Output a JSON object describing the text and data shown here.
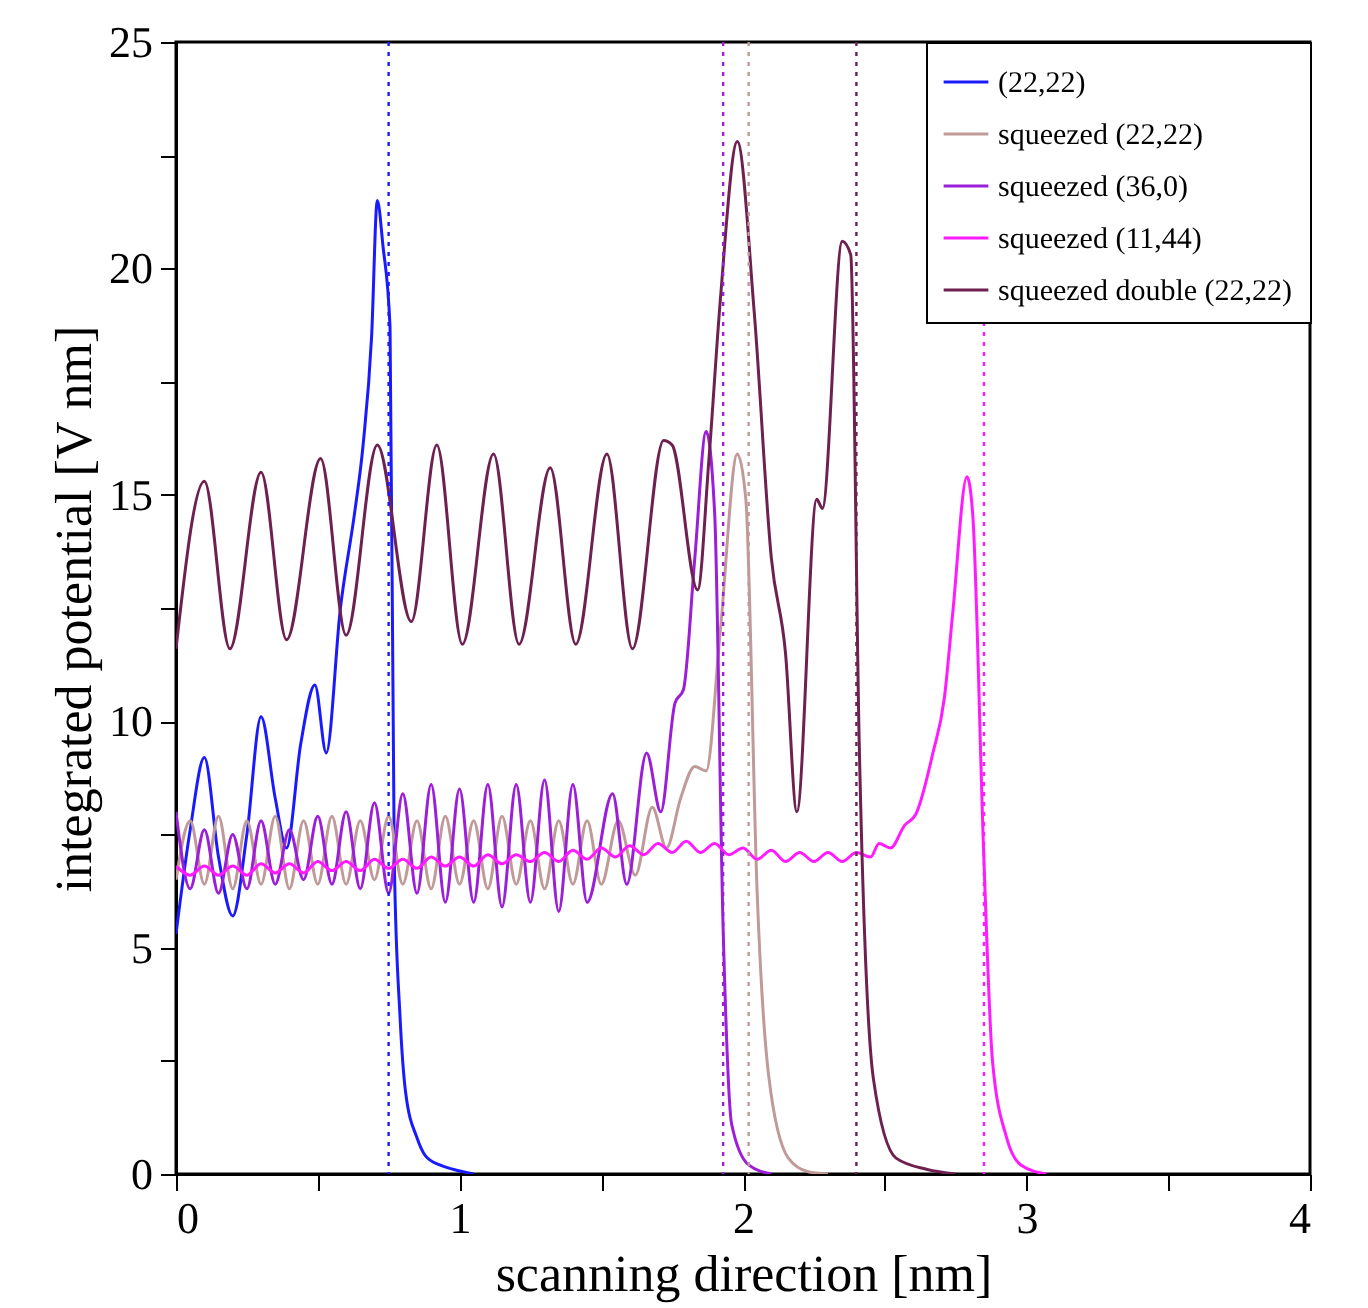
{
  "chart_data": {
    "type": "line",
    "xlabel": "scanning direction [nm]",
    "ylabel": "integrated potential [V nm]",
    "xlim": [
      0,
      4
    ],
    "ylim": [
      0,
      25
    ],
    "xticks": [
      0,
      {
        "value": 0.5,
        "label": null
      },
      1,
      {
        "value": 1.5,
        "label": null
      },
      2,
      {
        "value": 2.5,
        "label": null
      },
      3,
      {
        "value": 3.5,
        "label": null
      },
      4
    ],
    "yticks": [
      0,
      {
        "value": 2.5,
        "label": null
      },
      5,
      {
        "value": 7.5,
        "label": null
      },
      10,
      {
        "value": 12.5,
        "label": null
      },
      15,
      {
        "value": 17.5,
        "label": null
      },
      20,
      {
        "value": 22.5,
        "label": null
      },
      25
    ],
    "grid": false,
    "legend": "top right",
    "line_style": "solid",
    "marker": "none",
    "series": [
      {
        "name": "(22,22)",
        "color": "#1a1aff",
        "x": [
          0,
          0.05,
          0.1,
          0.15,
          0.2,
          0.25,
          0.3,
          0.35,
          0.39,
          0.44,
          0.49,
          0.53,
          0.58,
          0.63,
          0.66,
          0.69,
          0.71,
          0.73,
          0.755,
          0.77,
          0.79,
          0.81,
          0.85,
          0.88,
          0.93,
          0.98,
          1.05
        ],
        "values": [
          5.3,
          7.6,
          9.2,
          7.0,
          5.7,
          7.5,
          10.1,
          8.3,
          7.2,
          9.5,
          10.8,
          9.3,
          12.5,
          14.6,
          16.1,
          18.5,
          21.5,
          20.5,
          18.7,
          6.9,
          3.5,
          1.8,
          0.8,
          0.4,
          0.2,
          0.1,
          0
        ]
      },
      {
        "name": "squeezed (22,22)",
        "color": "#c09a98",
        "x": [
          0,
          0.05,
          0.1,
          0.15,
          0.2,
          0.25,
          0.3,
          0.35,
          0.4,
          0.45,
          0.5,
          0.55,
          0.6,
          0.65,
          0.7,
          0.75,
          0.8,
          0.85,
          0.9,
          0.95,
          1.0,
          1.05,
          1.1,
          1.15,
          1.2,
          1.25,
          1.3,
          1.35,
          1.4,
          1.45,
          1.5,
          1.56,
          1.62,
          1.68,
          1.73,
          1.78,
          1.83,
          1.87,
          1.92,
          1.98,
          2.01,
          2.05,
          2.09,
          2.16,
          2.23,
          2.3
        ],
        "values": [
          6.5,
          7.8,
          6.4,
          7.9,
          6.3,
          7.8,
          6.4,
          7.9,
          6.3,
          7.8,
          6.4,
          7.9,
          6.4,
          7.8,
          6.5,
          7.9,
          6.4,
          7.8,
          6.3,
          7.9,
          6.4,
          7.8,
          6.3,
          7.9,
          6.4,
          7.8,
          6.3,
          7.8,
          6.4,
          7.8,
          6.4,
          7.8,
          6.6,
          8.1,
          7.2,
          8.3,
          9.0,
          8.9,
          12.0,
          15.9,
          14.9,
          6.2,
          2.2,
          0.35,
          0.05,
          0
        ]
      },
      {
        "name": "squeezed (36,0)",
        "color": "#9b1ed8",
        "x": [
          0,
          0.05,
          0.1,
          0.15,
          0.2,
          0.25,
          0.3,
          0.35,
          0.4,
          0.45,
          0.5,
          0.55,
          0.6,
          0.65,
          0.7,
          0.75,
          0.8,
          0.85,
          0.9,
          0.95,
          1.0,
          1.05,
          1.1,
          1.15,
          1.2,
          1.25,
          1.3,
          1.35,
          1.4,
          1.45,
          1.54,
          1.59,
          1.66,
          1.71,
          1.76,
          1.79,
          1.83,
          1.87,
          1.9,
          1.93,
          1.96,
          2.02,
          2.1
        ],
        "values": [
          8.0,
          6.3,
          7.6,
          6.2,
          7.5,
          6.3,
          7.8,
          6.4,
          7.6,
          6.5,
          7.9,
          6.4,
          8.0,
          6.3,
          8.2,
          6.2,
          8.4,
          6.2,
          8.6,
          6.0,
          8.5,
          6.0,
          8.6,
          5.9,
          8.6,
          6.0,
          8.7,
          5.8,
          8.6,
          6.0,
          8.4,
          6.4,
          9.3,
          8.0,
          10.4,
          10.7,
          13.6,
          16.4,
          14.6,
          5.4,
          1.1,
          0.2,
          0
        ]
      },
      {
        "name": "squeezed (11,44)",
        "color": "#ff1aff",
        "x": [
          0,
          0.05,
          0.1,
          0.15,
          0.2,
          0.25,
          0.3,
          0.35,
          0.4,
          0.45,
          0.5,
          0.55,
          0.6,
          0.65,
          0.7,
          0.75,
          0.8,
          0.85,
          0.9,
          0.95,
          1.0,
          1.05,
          1.1,
          1.15,
          1.2,
          1.25,
          1.3,
          1.35,
          1.4,
          1.45,
          1.5,
          1.55,
          1.6,
          1.65,
          1.7,
          1.75,
          1.8,
          1.85,
          1.9,
          1.95,
          2.0,
          2.05,
          2.1,
          2.15,
          2.2,
          2.25,
          2.3,
          2.35,
          2.4,
          2.45,
          2.48,
          2.52,
          2.57,
          2.61,
          2.67,
          2.71,
          2.74,
          2.79,
          2.81,
          2.85,
          2.88,
          2.93,
          2.98,
          3.07
        ],
        "values": [
          6.8,
          6.6,
          6.8,
          6.6,
          6.8,
          6.6,
          6.85,
          6.65,
          6.85,
          6.65,
          6.9,
          6.7,
          6.9,
          6.7,
          6.95,
          6.75,
          6.95,
          6.75,
          7.0,
          6.8,
          7.0,
          6.8,
          7.05,
          6.85,
          7.05,
          6.9,
          7.1,
          6.9,
          7.15,
          6.95,
          7.2,
          7.0,
          7.25,
          7.05,
          7.3,
          7.1,
          7.35,
          7.1,
          7.3,
          7.05,
          7.2,
          6.95,
          7.15,
          6.9,
          7.1,
          6.9,
          7.1,
          6.9,
          7.1,
          7.0,
          7.3,
          7.2,
          7.7,
          7.95,
          9.3,
          10.5,
          12.4,
          15.4,
          14.6,
          6.9,
          2.5,
          0.8,
          0.2,
          0
        ]
      },
      {
        "name": "squeezed double (22,22)",
        "color": "#6e2150",
        "x": [
          0,
          0.1,
          0.19,
          0.3,
          0.39,
          0.51,
          0.6,
          0.71,
          0.83,
          0.92,
          1.01,
          1.12,
          1.21,
          1.32,
          1.41,
          1.52,
          1.61,
          1.72,
          1.75,
          1.84,
          1.88,
          1.92,
          1.98,
          2.04,
          2.1,
          2.15,
          2.19,
          2.26,
          2.28,
          2.35,
          2.38,
          2.41,
          2.46,
          2.54,
          2.65,
          2.75
        ],
        "values": [
          11.6,
          15.3,
          11.6,
          15.5,
          11.8,
          15.8,
          11.9,
          16.1,
          12.2,
          16.1,
          11.7,
          15.9,
          11.7,
          15.6,
          11.7,
          15.9,
          11.6,
          16.2,
          16.1,
          12.9,
          15.8,
          19.3,
          22.8,
          19.0,
          13.6,
          11.5,
          8.0,
          14.9,
          14.7,
          20.6,
          20.3,
          9.5,
          2.1,
          0.35,
          0.1,
          0
        ]
      }
    ],
    "ref_lines": [
      {
        "axis": "x",
        "value": 0.75,
        "color": "#1a1aff",
        "line_style": "dotted"
      },
      {
        "axis": "x",
        "value": 1.93,
        "color": "#9b1ed8",
        "line_style": "dotted"
      },
      {
        "axis": "x",
        "value": 2.02,
        "color": "#c09a98",
        "line_style": "dotted"
      },
      {
        "axis": "x",
        "value": 2.4,
        "color": "#6e2150",
        "line_style": "dotted"
      },
      {
        "axis": "x",
        "value": 2.85,
        "color": "#ff1aff",
        "line_style": "dotted"
      }
    ]
  }
}
